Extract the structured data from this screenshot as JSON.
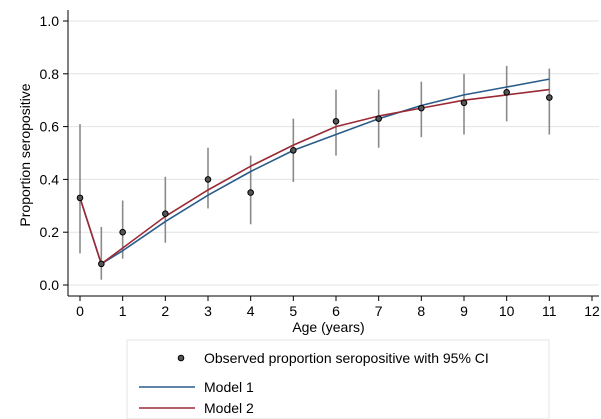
{
  "chart_data": {
    "type": "line",
    "title": "",
    "xlabel": "Age (years)",
    "ylabel": "Proportion seropositive",
    "xlim": [
      0,
      12
    ],
    "ylim": [
      0,
      1
    ],
    "x_ticks": [
      "0",
      "1",
      "2",
      "3",
      "4",
      "5",
      "6",
      "7",
      "8",
      "9",
      "10",
      "11",
      "12"
    ],
    "y_ticks": [
      "0.0",
      "0.2",
      "0.4",
      "0.6",
      "0.8",
      "1.0"
    ],
    "grid": "horizontal",
    "legend_position": "bottom",
    "observed": {
      "name": "Observed proportion seropositive with 95% CI",
      "x": [
        0,
        0.5,
        1,
        2,
        3,
        4,
        5,
        6,
        7,
        8,
        9,
        10,
        11
      ],
      "y": [
        0.33,
        0.08,
        0.2,
        0.27,
        0.4,
        0.35,
        0.51,
        0.62,
        0.63,
        0.67,
        0.69,
        0.73,
        0.71
      ],
      "lower": [
        0.12,
        0.02,
        0.1,
        0.16,
        0.29,
        0.23,
        0.39,
        0.49,
        0.52,
        0.56,
        0.57,
        0.62,
        0.57
      ],
      "upper": [
        0.61,
        0.22,
        0.32,
        0.41,
        0.52,
        0.49,
        0.63,
        0.74,
        0.74,
        0.77,
        0.8,
        0.83,
        0.82
      ],
      "color": "#000000"
    },
    "series": [
      {
        "name": "Model 1",
        "color": "#2b5d8c",
        "x": [
          0,
          0.5,
          1,
          2,
          3,
          4,
          5,
          6,
          7,
          8,
          9,
          10,
          11
        ],
        "values": [
          0.33,
          0.08,
          0.13,
          0.24,
          0.34,
          0.43,
          0.51,
          0.57,
          0.63,
          0.68,
          0.72,
          0.75,
          0.78
        ]
      },
      {
        "name": "Model 2",
        "color": "#9b2a35",
        "x": [
          0,
          0.5,
          1,
          2,
          3,
          4,
          5,
          6,
          7,
          8,
          9,
          10,
          11
        ],
        "values": [
          0.33,
          0.08,
          0.14,
          0.26,
          0.36,
          0.45,
          0.53,
          0.6,
          0.64,
          0.67,
          0.7,
          0.72,
          0.74
        ]
      }
    ]
  }
}
